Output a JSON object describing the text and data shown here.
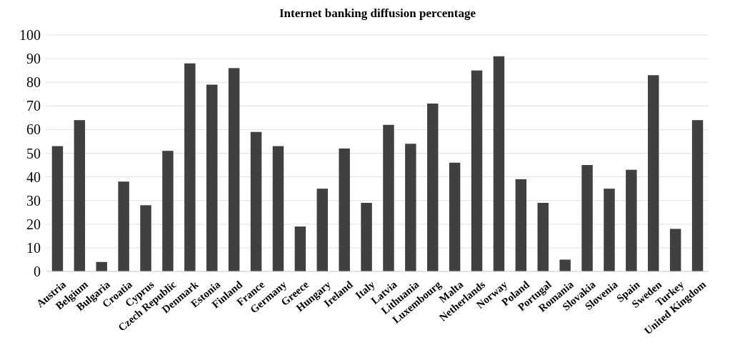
{
  "chart_data": {
    "type": "bar",
    "title": "Internet banking diffusion percentage",
    "categories": [
      "Austria",
      "Belgium",
      "Bulgaria",
      "Croatia",
      "Cyprus",
      "Czech Republic",
      "Denmark",
      "Estonia",
      "Finland",
      "France",
      "Germany",
      "Greece",
      "Hungary",
      "Ireland",
      "Italy",
      "Latvia",
      "Lithuania",
      "Luxembourg",
      "Malta",
      "Netherlands",
      "Norway",
      "Poland",
      "Portugal",
      "Romania",
      "Slovakia",
      "Slovenia",
      "Spain",
      "Sweden",
      "Turkey",
      "United Kingdom"
    ],
    "values": [
      53,
      64,
      4,
      38,
      28,
      51,
      88,
      79,
      86,
      59,
      53,
      19,
      35,
      52,
      29,
      62,
      54,
      71,
      46,
      85,
      91,
      39,
      29,
      5,
      45,
      35,
      43,
      83,
      18,
      64
    ],
    "color": "#404040",
    "ylim": [
      0,
      100
    ],
    "yticks": [
      0,
      10,
      20,
      30,
      40,
      50,
      60,
      70,
      80,
      90,
      100
    ],
    "grid": "y"
  }
}
